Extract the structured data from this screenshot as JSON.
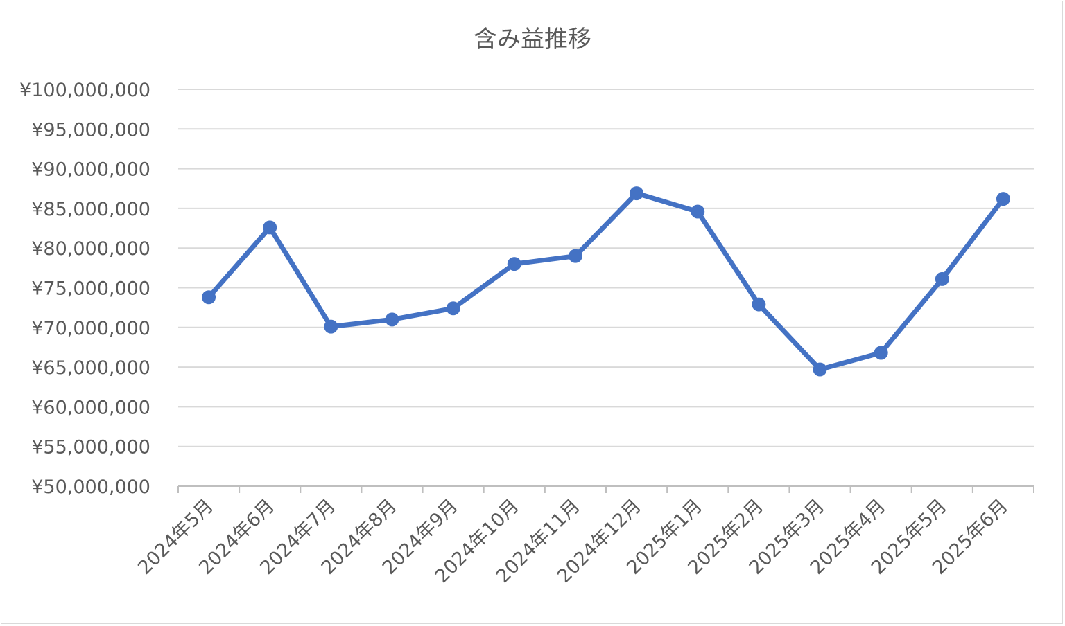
{
  "chart_data": {
    "type": "line",
    "title": "含み益推移",
    "xlabel": "",
    "ylabel": "",
    "categories": [
      "2024年5月",
      "2024年6月",
      "2024年7月",
      "2024年8月",
      "2024年9月",
      "2024年10月",
      "2024年11月",
      "2024年12月",
      "2025年1月",
      "2025年2月",
      "2025年3月",
      "2025年4月",
      "2025年5月",
      "2025年6月"
    ],
    "series": [
      {
        "values": [
          73800000,
          82600000,
          70100000,
          71000000,
          72400000,
          78000000,
          79000000,
          86900000,
          84600000,
          72900000,
          64700000,
          66800000,
          76100000,
          86200000
        ]
      }
    ],
    "ylim": [
      50000000,
      100000000
    ],
    "ytick_step": 5000000,
    "ytick_labels": [
      "¥50,000,000",
      "¥55,000,000",
      "¥60,000,000",
      "¥65,000,000",
      "¥70,000,000",
      "¥75,000,000",
      "¥80,000,000",
      "¥85,000,000",
      "¥90,000,000",
      "¥95,000,000",
      "¥100,000,000"
    ],
    "grid": true,
    "markers": true,
    "legend": "none",
    "colors": {
      "line": "#4472c4",
      "grid": "#d9d9d9",
      "text": "#595959"
    }
  }
}
